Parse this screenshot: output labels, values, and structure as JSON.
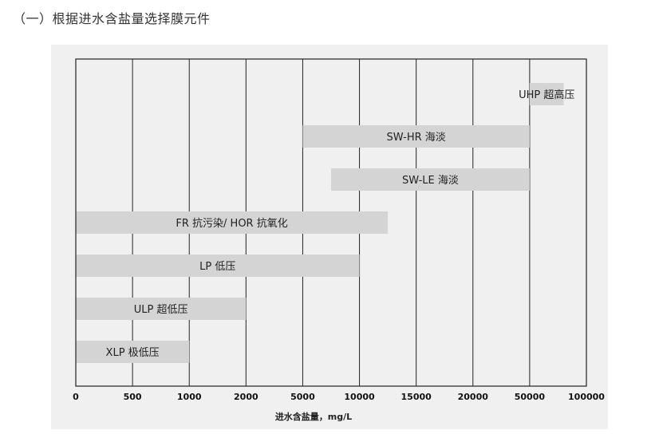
{
  "heading": "（一）根据进水含盐量选择膜元件",
  "chart_data": {
    "type": "bar",
    "orientation": "horizontal-range",
    "xlabel": "进水含盐量，mg/L",
    "ylabel": "",
    "x_ticks": [
      "0",
      "500",
      "1000",
      "2000",
      "5000",
      "10000",
      "15000",
      "20000",
      "50000",
      "100000"
    ],
    "grid": true,
    "bars": [
      {
        "label": "UHP 超高压",
        "start": 50000,
        "end": 80000
      },
      {
        "label": "SW-HR 海淡",
        "start": 5000,
        "end": 50000
      },
      {
        "label": "SW-LE 海淡",
        "start": 7500,
        "end": 50000
      },
      {
        "label": "FR 抗污染/ HOR 抗氧化",
        "start": 0,
        "end": 12500
      },
      {
        "label": "LP 低压",
        "start": 0,
        "end": 10000
      },
      {
        "label": "ULP 超低压",
        "start": 0,
        "end": 2000
      },
      {
        "label": "XLP 极低压",
        "start": 0,
        "end": 1000
      }
    ],
    "colors": {
      "bar": "#d4d4d4",
      "grid": "#222222",
      "panel": "#f0f0f0"
    }
  }
}
